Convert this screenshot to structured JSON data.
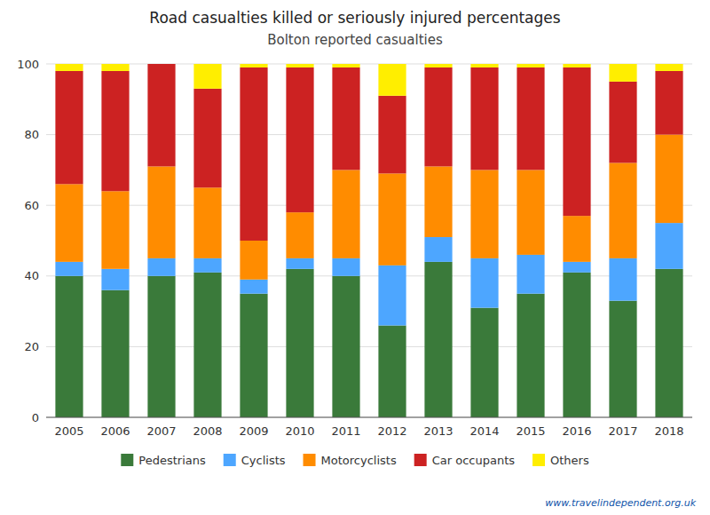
{
  "chart_data": {
    "type": "bar",
    "stacked": true,
    "title": "Road casualties killed or seriously injured percentages",
    "subtitle": "Bolton reported casualties",
    "annotations": [
      "www.travelindependent.org.uk"
    ],
    "categories": [
      "2005",
      "2006",
      "2007",
      "2008",
      "2009",
      "2010",
      "2011",
      "2012",
      "2013",
      "2014",
      "2015",
      "2016",
      "2017",
      "2018"
    ],
    "series": [
      {
        "name": "Pedestrians",
        "color": "#3a7a3a",
        "values": [
          40,
          36,
          40,
          41,
          35,
          42,
          40,
          26,
          44,
          31,
          35,
          41,
          33,
          42
        ]
      },
      {
        "name": "Cyclists",
        "color": "#4da6ff",
        "values": [
          4,
          6,
          5,
          4,
          4,
          3,
          5,
          17,
          7,
          14,
          11,
          3,
          12,
          13
        ]
      },
      {
        "name": "Motorcyclists",
        "color": "#ff8c00",
        "values": [
          22,
          22,
          26,
          20,
          11,
          13,
          25,
          26,
          20,
          25,
          24,
          13,
          27,
          25
        ]
      },
      {
        "name": "Car occupants",
        "color": "#cc2222",
        "values": [
          32,
          34,
          29,
          28,
          49,
          41,
          29,
          22,
          28,
          29,
          29,
          42,
          23,
          18
        ]
      },
      {
        "name": "Others",
        "color": "#ffee00",
        "values": [
          2,
          2,
          0,
          7,
          1,
          1,
          1,
          9,
          1,
          1,
          1,
          1,
          5,
          2
        ]
      }
    ],
    "ylim": [
      0,
      100
    ],
    "yticks": [
      0,
      20,
      40,
      60,
      80,
      100
    ],
    "grid": true,
    "legend": "bottom"
  }
}
